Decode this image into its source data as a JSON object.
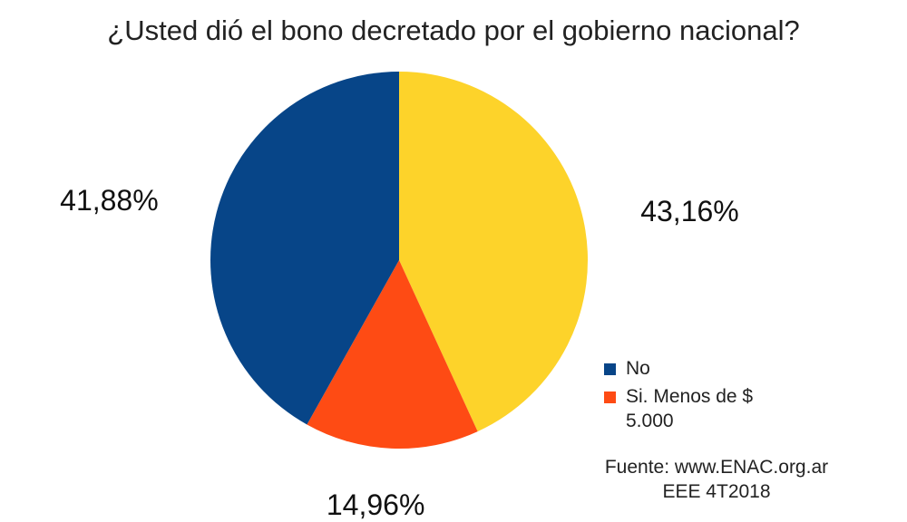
{
  "chart_data": {
    "type": "pie",
    "title": "¿Usted dió el bono decretado por el gobierno nacional?",
    "slices": [
      {
        "label": "",
        "value": 43.16,
        "display": "43,16%",
        "color": "#FDD32A"
      },
      {
        "label": "Si. Menos de $ 5.000",
        "value": 14.96,
        "display": "14,96%",
        "color": "#FE4B14"
      },
      {
        "label": "No",
        "value": 41.88,
        "display": "41,88%",
        "color": "#074588"
      }
    ],
    "legend": [
      {
        "label": "No",
        "color": "#074588"
      },
      {
        "label": "Si. Menos de $ 5.000",
        "color": "#FE4B14"
      }
    ],
    "legend_position": "bottom-right",
    "source_line1": "Fuente: www.ENAC.org.ar",
    "source_line2": "EEE 4T2018"
  }
}
